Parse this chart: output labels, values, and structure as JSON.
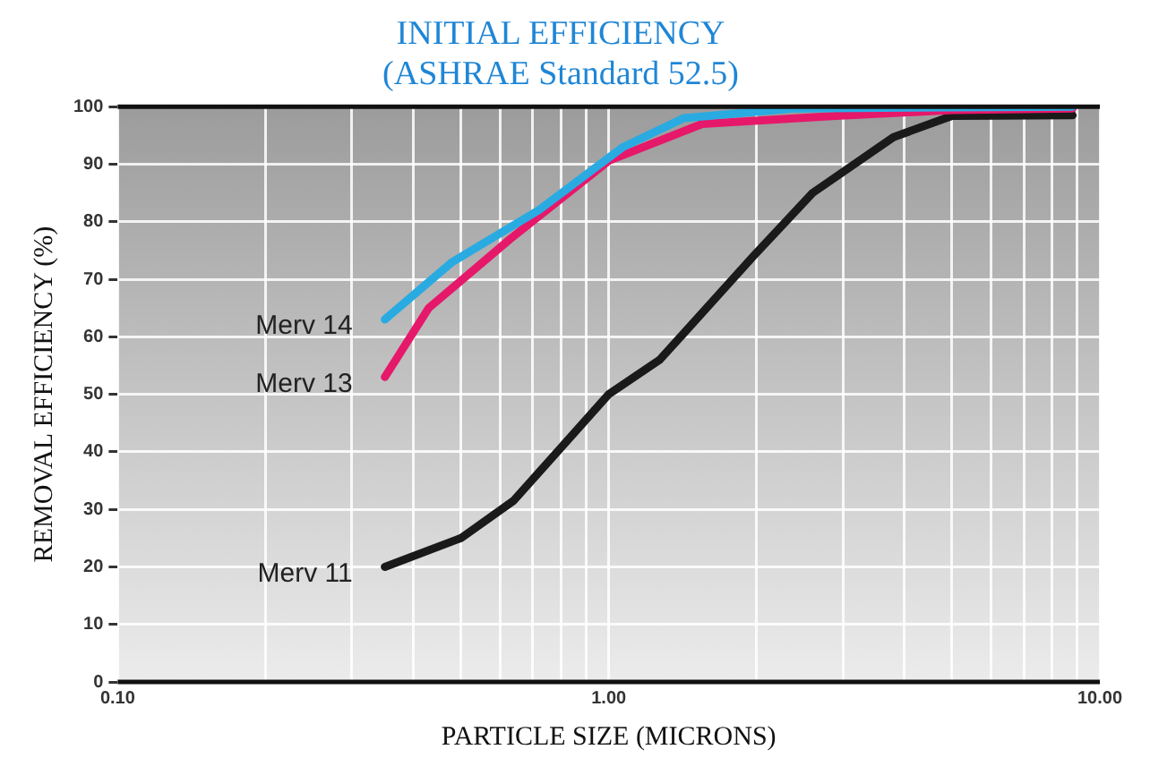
{
  "chart_data": {
    "type": "line",
    "title": "INITIAL EFFICIENCY",
    "subtitle": "(ASHRAE Standard 52.5)",
    "xlabel": "PARTICLE SIZE (MICRONS)",
    "ylabel": "REMOVAL EFFICIENCY (%)",
    "log": "x",
    "grid": true,
    "legend": false,
    "marker": "none",
    "line_style": "solid",
    "xlim": [
      0.1,
      10
    ],
    "ylim": [
      0,
      100
    ],
    "xticks": [
      {
        "value": 0.1,
        "label": "0.10"
      },
      {
        "value": 0.2,
        "label": null
      },
      {
        "value": 0.3,
        "label": null
      },
      {
        "value": 0.4,
        "label": null
      },
      {
        "value": 0.5,
        "label": null
      },
      {
        "value": 0.6,
        "label": null
      },
      {
        "value": 0.7,
        "label": null
      },
      {
        "value": 0.8,
        "label": null
      },
      {
        "value": 0.9,
        "label": null
      },
      {
        "value": 1,
        "label": "1.00"
      },
      {
        "value": 2,
        "label": null
      },
      {
        "value": 3,
        "label": null
      },
      {
        "value": 4,
        "label": null
      },
      {
        "value": 5,
        "label": null
      },
      {
        "value": 6,
        "label": null
      },
      {
        "value": 7,
        "label": null
      },
      {
        "value": 8,
        "label": null
      },
      {
        "value": 9,
        "label": null
      },
      {
        "value": 10,
        "label": "10.00"
      }
    ],
    "yticks": [
      0,
      10,
      20,
      30,
      40,
      50,
      60,
      70,
      80,
      90,
      100
    ],
    "series": [
      {
        "name": "Merv 14",
        "color": "#29abe2",
        "x": [
          0.35,
          0.48,
          0.72,
          1.07,
          1.42,
          2.4,
          8.8
        ],
        "values": [
          63,
          73,
          82,
          93,
          98,
          99.7,
          100
        ]
      },
      {
        "name": "Merv 13",
        "color": "#e6186a",
        "x": [
          0.35,
          0.43,
          0.63,
          1.0,
          1.55,
          2.9,
          5.0,
          8.8
        ],
        "values": [
          53,
          65,
          77,
          90.6,
          97,
          98.4,
          99.4,
          99.7
        ]
      },
      {
        "name": "Merv 11",
        "color": "#1a1a1a",
        "x": [
          0.35,
          0.5,
          0.64,
          1.0,
          1.27,
          1.97,
          2.6,
          3.8,
          5.0,
          8.8
        ],
        "values": [
          20,
          25,
          31.5,
          50,
          56,
          74,
          85,
          94.7,
          98.4,
          98.5
        ]
      }
    ]
  }
}
